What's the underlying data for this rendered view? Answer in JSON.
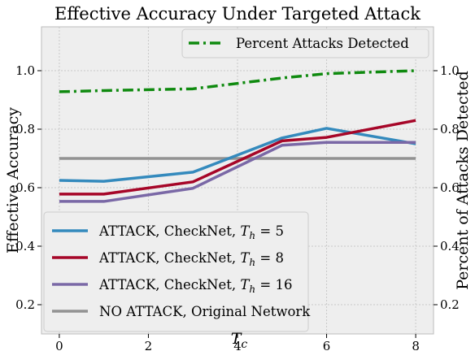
{
  "chart_data": {
    "type": "line",
    "title": "Effective Accuracy Under Targeted Attack",
    "xlabel": "T_c",
    "ylabel": "Effective Accuracy",
    "ylabel_right": "Percent of Attacks Detected",
    "xlim": [
      -0.4,
      8.4
    ],
    "ylim": [
      0.1,
      1.15
    ],
    "xticks": [
      0,
      2,
      4,
      6,
      8
    ],
    "yticks_left": [
      0.2,
      0.4,
      0.6,
      0.8,
      1.0
    ],
    "yticks_right": [
      0.2,
      0.4,
      0.6,
      0.8,
      1.0
    ],
    "grid": true,
    "series": [
      {
        "name": "ATTACK, CheckNet, T_h = 5",
        "color": "#348abd",
        "style": "solid",
        "x": [
          0,
          1,
          3,
          5,
          6,
          8
        ],
        "y": [
          0.625,
          0.622,
          0.653,
          0.77,
          0.803,
          0.75
        ]
      },
      {
        "name": "ATTACK, CheckNet, T_h = 8",
        "color": "#a60628",
        "style": "solid",
        "x": [
          0,
          1,
          3,
          5,
          6,
          8
        ],
        "y": [
          0.578,
          0.578,
          0.62,
          0.76,
          0.772,
          0.83
        ]
      },
      {
        "name": "ATTACK, CheckNet, T_h = 16",
        "color": "#7a68a6",
        "style": "solid",
        "x": [
          0,
          1,
          3,
          5,
          6,
          8
        ],
        "y": [
          0.553,
          0.553,
          0.598,
          0.745,
          0.755,
          0.755
        ]
      },
      {
        "name": "NO ATTACK, Original Network",
        "color": "#929292",
        "style": "solid",
        "x": [
          0,
          8
        ],
        "y": [
          0.7,
          0.7
        ]
      },
      {
        "name": "Percent Attacks Detected",
        "color": "#0f8a0f",
        "style": "dashdot",
        "axis": "right",
        "x": [
          0,
          1,
          3,
          5,
          6,
          8
        ],
        "y": [
          0.928,
          0.932,
          0.938,
          0.975,
          0.99,
          1.0
        ]
      }
    ],
    "legend_lower": {
      "placement": "lower-left",
      "entries": [
        {
          "prefix": "ATTACK, CheckNet, ",
          "sym": "T",
          "sub": "h",
          "suffix": " = 5"
        },
        {
          "prefix": "ATTACK, CheckNet, ",
          "sym": "T",
          "sub": "h",
          "suffix": " = 8"
        },
        {
          "prefix": "ATTACK, CheckNet, ",
          "sym": "T",
          "sub": "h",
          "suffix": " = 16"
        },
        {
          "prefix": "NO ATTACK, Original Network",
          "sym": "",
          "sub": "",
          "suffix": ""
        }
      ]
    },
    "legend_upper": {
      "placement": "top-right",
      "entries": [
        {
          "prefix": "Percent Attacks Detected",
          "sym": "",
          "sub": "",
          "suffix": ""
        }
      ]
    }
  }
}
